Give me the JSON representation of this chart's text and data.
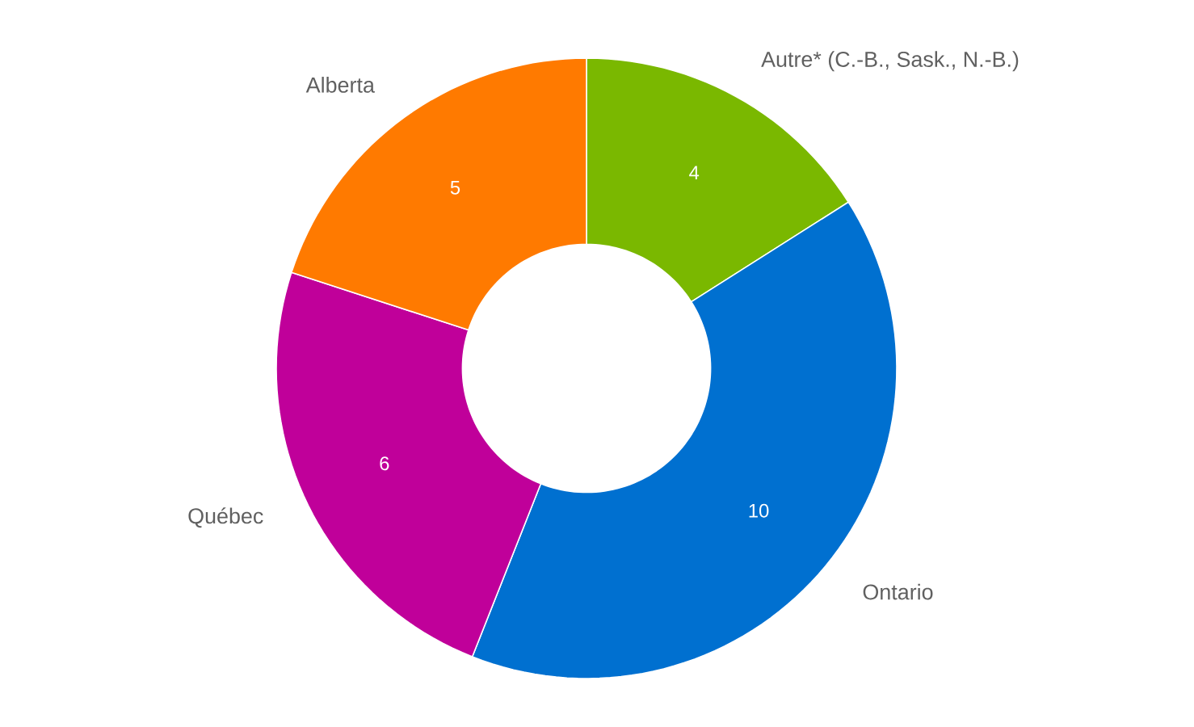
{
  "chart_data": {
    "type": "donut",
    "categories": [
      "Autre* (C.-B., Sask., N.-B.)",
      "Ontario",
      "Québec",
      "Alberta"
    ],
    "values": [
      4,
      10,
      6,
      5
    ],
    "colors": [
      "#7ab800",
      "#0070d0",
      "#c0009a",
      "#ff7a00"
    ],
    "data_labels": true
  }
}
